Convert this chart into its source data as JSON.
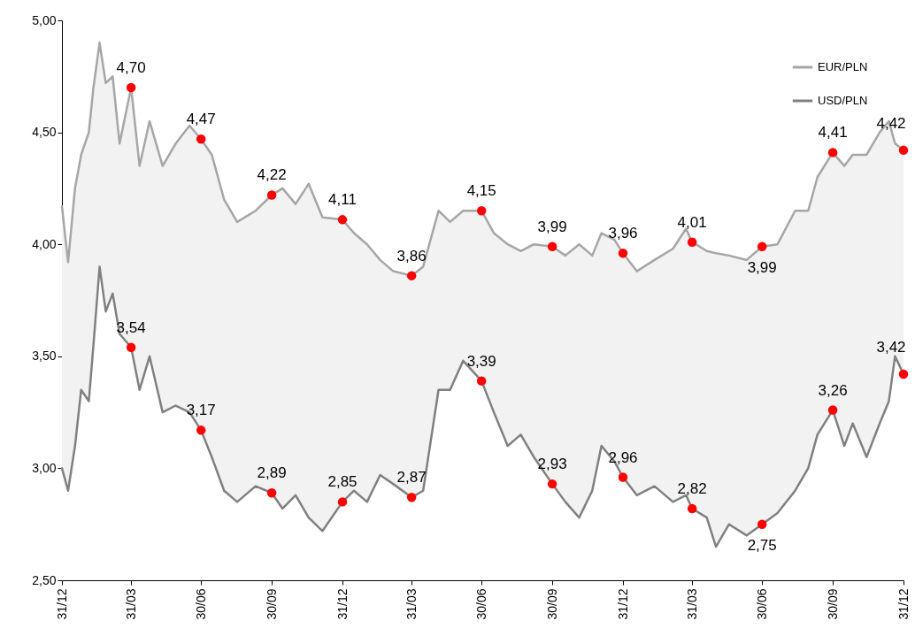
{
  "chart_data": {
    "type": "area",
    "legend": "top right",
    "x": [
      "2008-12-31",
      "2009-01-08",
      "2009-01-17",
      "2009-01-25",
      "2009-02-04",
      "2009-02-10",
      "2009-02-18",
      "2009-02-26",
      "2009-03-07",
      "2009-03-16",
      "2009-03-31",
      "2009-04-11",
      "2009-04-24",
      "2009-05-11",
      "2009-05-28",
      "2009-06-15",
      "2009-06-30",
      "2009-07-14",
      "2009-07-30",
      "2009-08-16",
      "2009-09-09",
      "2009-09-30",
      "2009-10-14",
      "2009-10-31",
      "2009-11-17",
      "2009-12-05",
      "2009-12-31",
      "2010-01-15",
      "2010-02-01",
      "2010-02-18",
      "2010-03-07",
      "2010-03-31",
      "2010-04-15",
      "2010-05-05",
      "2010-05-20",
      "2010-06-06",
      "2010-06-30",
      "2010-07-16",
      "2010-08-03",
      "2010-08-20",
      "2010-09-06",
      "2010-09-30",
      "2010-10-17",
      "2010-11-04",
      "2010-11-21",
      "2010-12-03",
      "2010-12-20",
      "2010-12-31",
      "2011-01-18",
      "2011-02-10",
      "2011-03-06",
      "2011-03-23",
      "2011-03-31",
      "2011-04-19",
      "2011-05-01",
      "2011-05-18",
      "2011-06-10",
      "2011-06-30",
      "2011-07-20",
      "2011-08-12",
      "2011-08-29",
      "2011-09-10",
      "2011-09-30",
      "2011-10-15",
      "2011-10-26",
      "2011-11-13",
      "2011-11-30",
      "2011-12-12",
      "2011-12-20",
      "2011-12-31"
    ],
    "xlim": [
      "2008-12-31",
      "2011-12-31"
    ],
    "xticks": [
      {
        "value": "2008-12-31",
        "label": "31/12"
      },
      {
        "value": "2009-03-31",
        "label": "31/03"
      },
      {
        "value": "2009-06-30",
        "label": "30/06"
      },
      {
        "value": "2009-09-30",
        "label": "30/09"
      },
      {
        "value": "2009-12-31",
        "label": "31/12"
      },
      {
        "value": "2010-03-31",
        "label": "31/03"
      },
      {
        "value": "2010-06-30",
        "label": "30/06"
      },
      {
        "value": "2010-09-30",
        "label": "30/09"
      },
      {
        "value": "2010-12-31",
        "label": "31/12"
      },
      {
        "value": "2011-03-31",
        "label": "31/03"
      },
      {
        "value": "2011-06-30",
        "label": "30/06"
      },
      {
        "value": "2011-09-30",
        "label": "30/09"
      },
      {
        "value": "2011-12-31",
        "label": "31/12"
      }
    ],
    "ylim": [
      2.5,
      5
    ],
    "yticks": [
      {
        "value": 2.5,
        "label": "2,50"
      },
      {
        "value": 3,
        "label": "3,00"
      },
      {
        "value": 3.5,
        "label": "3,50"
      },
      {
        "value": 4,
        "label": "4,00"
      },
      {
        "value": 4.5,
        "label": "4,50"
      },
      {
        "value": 5,
        "label": "5,00"
      }
    ],
    "series": [
      {
        "name": "EUR/PLN",
        "color": "#a6a6a6",
        "values": [
          4.17,
          3.92,
          4.25,
          4.4,
          4.5,
          4.7,
          4.9,
          4.72,
          4.75,
          4.45,
          4.7,
          4.35,
          4.55,
          4.35,
          4.45,
          4.53,
          4.47,
          4.4,
          4.2,
          4.1,
          4.15,
          4.22,
          4.25,
          4.18,
          4.27,
          4.12,
          4.11,
          4.05,
          4,
          3.93,
          3.88,
          3.86,
          3.9,
          4.15,
          4.1,
          4.15,
          4.15,
          4.05,
          4,
          3.97,
          4,
          3.99,
          3.95,
          4,
          3.95,
          4.05,
          4.02,
          3.96,
          3.88,
          3.93,
          3.98,
          4.07,
          4.01,
          3.97,
          3.96,
          3.95,
          3.93,
          3.99,
          4,
          4.15,
          4.15,
          4.3,
          4.41,
          4.35,
          4.4,
          4.4,
          4.5,
          4.55,
          4.45,
          4.42
        ]
      },
      {
        "name": "USD/PLN",
        "color": "#808080",
        "values": [
          3,
          2.9,
          3.1,
          3.35,
          3.3,
          3.55,
          3.9,
          3.7,
          3.78,
          3.6,
          3.54,
          3.35,
          3.5,
          3.25,
          3.28,
          3.25,
          3.17,
          3.05,
          2.9,
          2.85,
          2.92,
          2.89,
          2.82,
          2.88,
          2.78,
          2.72,
          2.85,
          2.9,
          2.85,
          2.97,
          2.93,
          2.87,
          2.9,
          3.35,
          3.35,
          3.48,
          3.39,
          3.25,
          3.1,
          3.15,
          3.05,
          2.93,
          2.85,
          2.78,
          2.9,
          3.1,
          3.03,
          2.96,
          2.88,
          2.92,
          2.85,
          2.88,
          2.82,
          2.78,
          2.65,
          2.75,
          2.7,
          2.75,
          2.8,
          2.9,
          3,
          3.15,
          3.26,
          3.1,
          3.2,
          3.05,
          3.2,
          3.3,
          3.5,
          3.42
        ]
      },
      {
        "type": "scatter",
        "marker": "circle",
        "color": "#ff0000",
        "x": [
          "2009-03-31",
          "2009-06-30",
          "2009-09-30",
          "2009-12-31",
          "2010-03-31",
          "2010-06-30",
          "2010-09-30",
          "2010-12-31",
          "2011-03-31",
          "2011-06-30",
          "2011-09-30",
          "2011-12-31"
        ],
        "values": [
          4.7,
          4.47,
          4.22,
          4.11,
          3.86,
          4.15,
          3.99,
          3.96,
          4.01,
          3.99,
          4.41,
          4.42
        ],
        "value_labels": [
          "4,70",
          "4,47",
          "4,22",
          "4,11",
          "3,86",
          "4,15",
          "3,99",
          "3,96",
          "4,01",
          "3,99",
          "4,41",
          "4,42"
        ]
      },
      {
        "type": "scatter",
        "marker": "circle",
        "color": "#ff0000",
        "x": [
          "2009-03-31",
          "2009-06-30",
          "2009-09-30",
          "2009-12-31",
          "2010-03-31",
          "2010-06-30",
          "2010-09-30",
          "2010-12-31",
          "2011-03-31",
          "2011-06-30",
          "2011-09-30",
          "2011-12-31"
        ],
        "values": [
          3.54,
          3.17,
          2.89,
          2.85,
          2.87,
          3.39,
          2.93,
          2.96,
          2.82,
          2.75,
          3.26,
          3.42
        ],
        "value_labels": [
          "3,54",
          "3,17",
          "2,89",
          "2,85",
          "2,87",
          "3,39",
          "2,93",
          "2,96",
          "2,82",
          "2,75",
          "3,26",
          "3,42"
        ]
      }
    ]
  }
}
